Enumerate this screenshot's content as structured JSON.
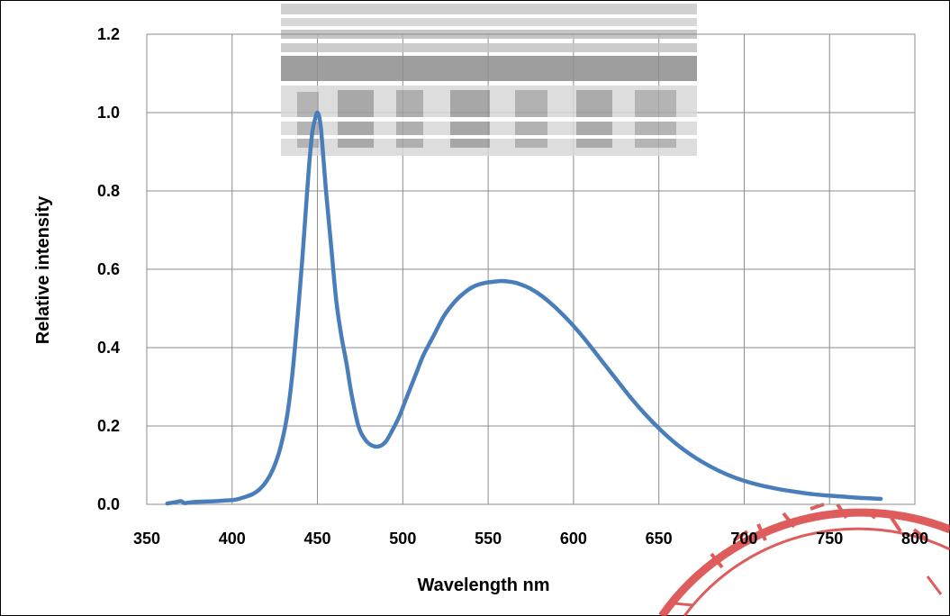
{
  "chart_data": {
    "type": "line",
    "title": "",
    "xlabel": "Wavelength nm",
    "ylabel": "Relative intensity",
    "xlim": [
      350,
      800
    ],
    "ylim": [
      0,
      1.2
    ],
    "xticks": [
      "350",
      "400",
      "450",
      "500",
      "550",
      "600",
      "650",
      "700",
      "750",
      "800"
    ],
    "yticks": [
      "0.0",
      "0.2",
      "0.4",
      "0.6",
      "0.8",
      "1.0",
      "1.2"
    ],
    "grid": true,
    "legend": "none",
    "series": [
      {
        "color": "#4a7ebb",
        "x": [
          362,
          366,
          370,
          372,
          374,
          378,
          383,
          390,
          397,
          402,
          407,
          412,
          416,
          420,
          424,
          428,
          432,
          435,
          438,
          441,
          443,
          445,
          447,
          449,
          450,
          451,
          452,
          453,
          455,
          458,
          461,
          464,
          467,
          470,
          474,
          478,
          482,
          486,
          490,
          494,
          498,
          502,
          507,
          512,
          518,
          524,
          530,
          536,
          542,
          548,
          553,
          558,
          563,
          568,
          575,
          582,
          590,
          598,
          606,
          615,
          624,
          633,
          642,
          651,
          660,
          670,
          680,
          690,
          700,
          710,
          720,
          730,
          740,
          750,
          760,
          770,
          780
        ],
        "y": [
          0.002,
          0.005,
          0.008,
          0.003,
          0.004,
          0.006,
          0.007,
          0.008,
          0.01,
          0.012,
          0.018,
          0.026,
          0.038,
          0.058,
          0.09,
          0.14,
          0.22,
          0.32,
          0.46,
          0.62,
          0.74,
          0.86,
          0.95,
          0.99,
          1.0,
          0.99,
          0.96,
          0.91,
          0.8,
          0.66,
          0.52,
          0.43,
          0.36,
          0.28,
          0.2,
          0.165,
          0.15,
          0.148,
          0.16,
          0.19,
          0.225,
          0.27,
          0.325,
          0.38,
          0.43,
          0.48,
          0.515,
          0.54,
          0.557,
          0.565,
          0.568,
          0.57,
          0.568,
          0.563,
          0.55,
          0.53,
          0.5,
          0.465,
          0.425,
          0.375,
          0.325,
          0.275,
          0.23,
          0.19,
          0.155,
          0.123,
          0.097,
          0.076,
          0.06,
          0.048,
          0.039,
          0.032,
          0.026,
          0.022,
          0.019,
          0.016,
          0.014
        ]
      }
    ],
    "colors": {
      "line": "#4a7ebb",
      "grid": "#8c8c8c",
      "plot_border": "#8c8c8c",
      "outer_border": "#000000",
      "watermark_gray": "#9c9c9c",
      "seal_red": "#d94040"
    }
  }
}
